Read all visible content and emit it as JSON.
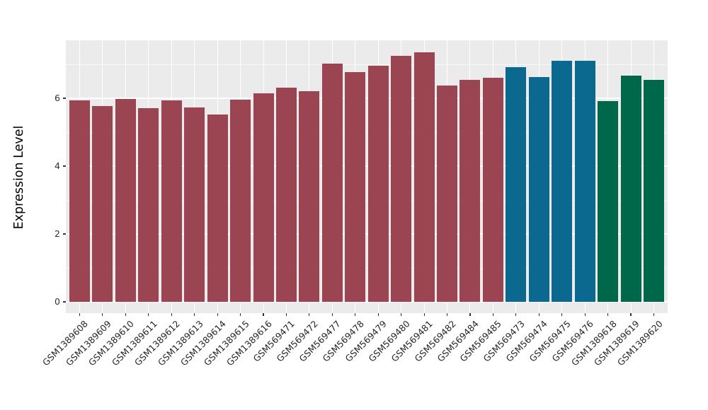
{
  "chart_data": {
    "type": "bar",
    "title": "",
    "xlabel": "",
    "ylabel": "Expression Level",
    "ylim": [
      0,
      7.7
    ],
    "yticks_major": [
      0,
      2,
      4,
      6
    ],
    "yticks_minor": [
      1,
      3,
      5,
      7
    ],
    "grid": true,
    "legend": "none",
    "panel_background": "#EBEBEB",
    "gridline_color": "#FFFFFF",
    "palette": {
      "maroon": "#9B4452",
      "teal": "#0B688E",
      "green": "#00684A"
    },
    "categories": [
      "GSM1389608",
      "GSM1389609",
      "GSM1389610",
      "GSM1389611",
      "GSM1389612",
      "GSM1389613",
      "GSM1389614",
      "GSM1389615",
      "GSM1389616",
      "GSM569471",
      "GSM569472",
      "GSM569477",
      "GSM569478",
      "GSM569479",
      "GSM569480",
      "GSM569481",
      "GSM569482",
      "GSM569484",
      "GSM569485",
      "GSM569473",
      "GSM569474",
      "GSM569475",
      "GSM569476",
      "GSM1389618",
      "GSM1389619",
      "GSM1389620"
    ],
    "values": [
      5.93,
      5.78,
      5.97,
      5.71,
      5.93,
      5.72,
      5.52,
      5.95,
      6.15,
      6.31,
      6.21,
      7.03,
      6.78,
      6.96,
      7.24,
      7.35,
      6.37,
      6.55,
      6.6,
      6.91,
      6.62,
      7.11,
      7.11,
      5.92,
      6.67,
      6.55
    ],
    "bar_colors": [
      "#9B4452",
      "#9B4452",
      "#9B4452",
      "#9B4452",
      "#9B4452",
      "#9B4452",
      "#9B4452",
      "#9B4452",
      "#9B4452",
      "#9B4452",
      "#9B4452",
      "#9B4452",
      "#9B4452",
      "#9B4452",
      "#9B4452",
      "#9B4452",
      "#9B4452",
      "#9B4452",
      "#9B4452",
      "#0B688E",
      "#0B688E",
      "#0B688E",
      "#0B688E",
      "#00684A",
      "#00684A",
      "#00684A"
    ]
  }
}
